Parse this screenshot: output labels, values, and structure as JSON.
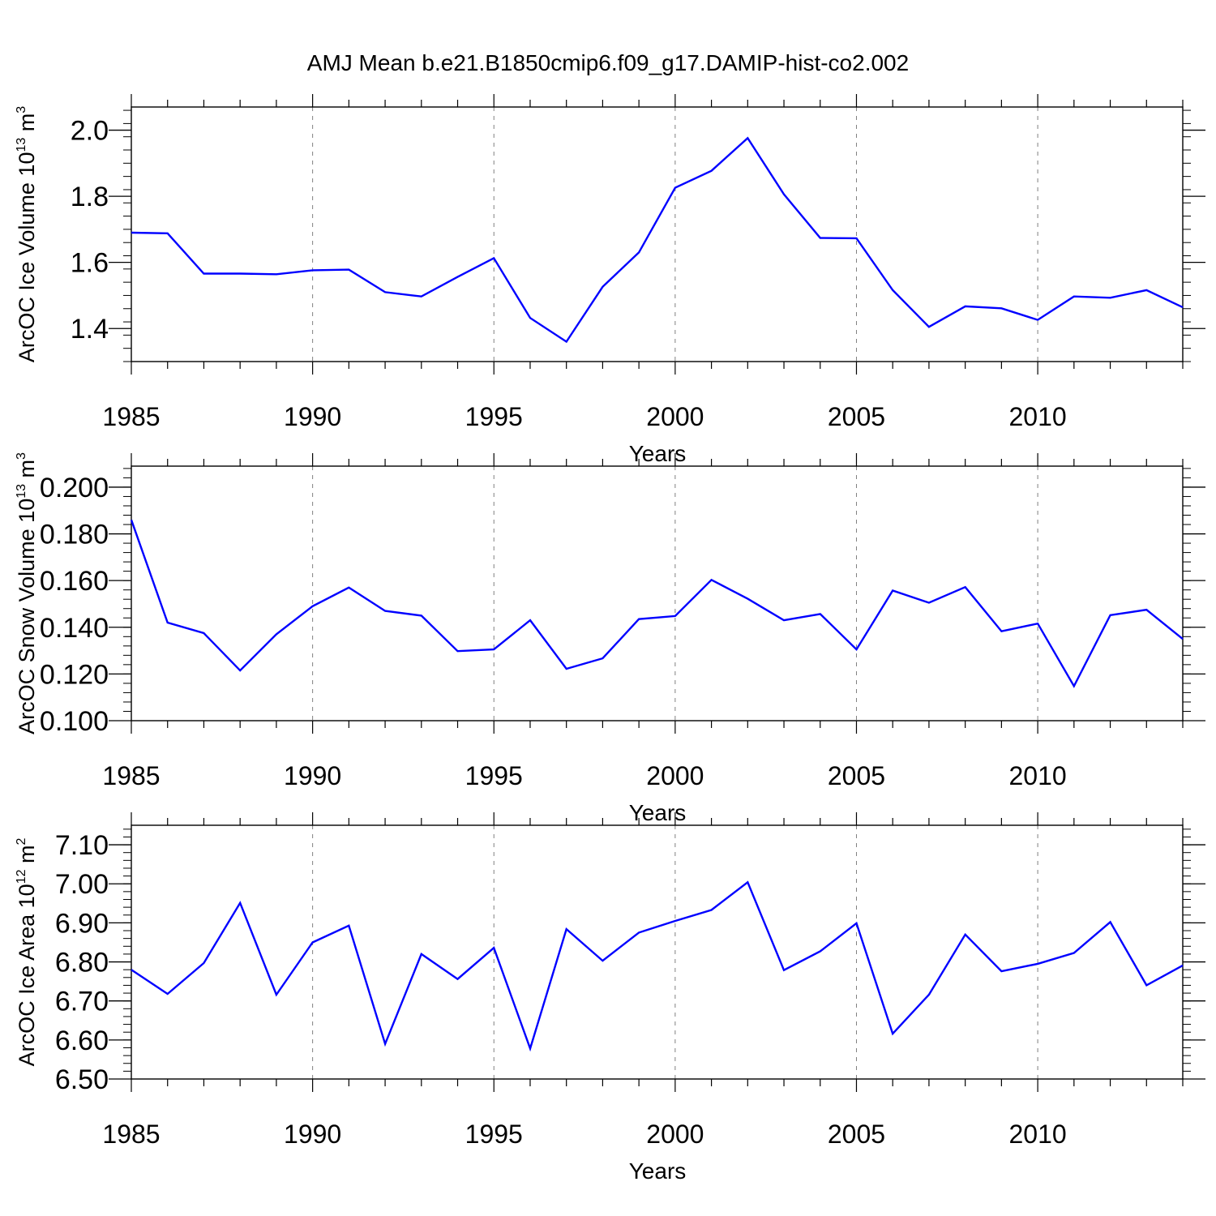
{
  "title": "AMJ Mean b.e21.B1850cmip6.f09_g17.DAMIP-hist-co2.002",
  "line_color": "#0000ff",
  "chart_data": [
    {
      "type": "line",
      "title": "AMJ Mean b.e21.B1850cmip6.f09_g17.DAMIP-hist-co2.002",
      "xlabel": "Years",
      "ylabel": "ArcOC Ice Volume 10",
      "ylabel_exp": "13",
      "ylabel_unit": " m",
      "ylabel_unit_exp": "3",
      "xlim": [
        1985,
        2014
      ],
      "ylim": [
        1.3,
        2.07
      ],
      "xticks": [
        1985,
        1990,
        1995,
        2000,
        2005,
        2010
      ],
      "xtick_labels": [
        "1985",
        "1990",
        "1995",
        "2000",
        "2005",
        "2010"
      ],
      "yticks": [
        1.4,
        1.6,
        1.8,
        2.0
      ],
      "ytick_labels": [
        "1.4",
        "1.6",
        "1.8",
        "2.0"
      ],
      "y_minor_step": 0.04,
      "grid": "vertical dashed at major x ticks",
      "x": [
        1985,
        1986,
        1987,
        1988,
        1989,
        1990,
        1991,
        1992,
        1993,
        1994,
        1995,
        1996,
        1997,
        1998,
        1999,
        2000,
        2001,
        2002,
        2003,
        2004,
        2005,
        2006,
        2007,
        2008,
        2009,
        2010,
        2011,
        2012,
        2013,
        2014
      ],
      "values": [
        1.69,
        1.688,
        1.566,
        1.566,
        1.564,
        1.576,
        1.578,
        1.51,
        1.497,
        1.556,
        1.613,
        1.432,
        1.36,
        1.526,
        1.63,
        1.826,
        1.877,
        1.976,
        1.806,
        1.674,
        1.673,
        1.516,
        1.405,
        1.467,
        1.461,
        1.426,
        1.497,
        1.493,
        1.516,
        1.464
      ]
    },
    {
      "type": "line",
      "xlabel": "Years",
      "ylabel": "ArcOC Snow Volume 10",
      "ylabel_exp": "13",
      "ylabel_unit": " m",
      "ylabel_unit_exp": "3",
      "xlim": [
        1985,
        2014
      ],
      "ylim": [
        0.1,
        0.209
      ],
      "xticks": [
        1985,
        1990,
        1995,
        2000,
        2005,
        2010
      ],
      "xtick_labels": [
        "1985",
        "1990",
        "1995",
        "2000",
        "2005",
        "2010"
      ],
      "yticks": [
        0.1,
        0.12,
        0.14,
        0.16,
        0.18,
        0.2
      ],
      "ytick_labels": [
        "0.100",
        "0.120",
        "0.140",
        "0.160",
        "0.180",
        "0.200"
      ],
      "y_minor_step": 0.004,
      "grid": "vertical dashed at major x ticks",
      "x": [
        1985,
        1986,
        1987,
        1988,
        1989,
        1990,
        1991,
        1992,
        1993,
        1994,
        1995,
        1996,
        1997,
        1998,
        1999,
        2000,
        2001,
        2002,
        2003,
        2004,
        2005,
        2006,
        2007,
        2008,
        2009,
        2010,
        2011,
        2012,
        2013,
        2014
      ],
      "values": [
        0.186,
        0.142,
        0.1375,
        0.1215,
        0.137,
        0.149,
        0.157,
        0.147,
        0.145,
        0.1298,
        0.1305,
        0.143,
        0.1222,
        0.1267,
        0.1435,
        0.1448,
        0.1603,
        0.1522,
        0.143,
        0.1457,
        0.1305,
        0.1557,
        0.1505,
        0.1572,
        0.1383,
        0.1416,
        0.1148,
        0.1452,
        0.1475,
        0.135
      ]
    },
    {
      "type": "line",
      "xlabel": "Years",
      "ylabel": "ArcOC Ice Area 10",
      "ylabel_exp": "12",
      "ylabel_unit": " m",
      "ylabel_unit_exp": "2",
      "xlim": [
        1985,
        2014
      ],
      "ylim": [
        6.5,
        7.15
      ],
      "xticks": [
        1985,
        1990,
        1995,
        2000,
        2005,
        2010
      ],
      "xtick_labels": [
        "1985",
        "1990",
        "1995",
        "2000",
        "2005",
        "2010"
      ],
      "yticks": [
        6.5,
        6.6,
        6.7,
        6.8,
        6.9,
        7.0,
        7.1
      ],
      "ytick_labels": [
        "6.50",
        "6.60",
        "6.70",
        "6.80",
        "6.90",
        "7.00",
        "7.10"
      ],
      "y_minor_step": 0.02,
      "grid": "vertical dashed at major x ticks",
      "x": [
        1985,
        1986,
        1987,
        1988,
        1989,
        1990,
        1991,
        1992,
        1993,
        1994,
        1995,
        1996,
        1997,
        1998,
        1999,
        2000,
        2001,
        2002,
        2003,
        2004,
        2005,
        2006,
        2007,
        2008,
        2009,
        2010,
        2011,
        2012,
        2013,
        2014
      ],
      "values": [
        6.78,
        6.718,
        6.797,
        6.951,
        6.716,
        6.85,
        6.893,
        6.59,
        6.82,
        6.756,
        6.836,
        6.578,
        6.884,
        6.803,
        6.875,
        6.905,
        6.933,
        7.004,
        6.779,
        6.827,
        6.899,
        6.616,
        6.716,
        6.87,
        6.776,
        6.795,
        6.823,
        6.902,
        6.74,
        6.791
      ]
    }
  ]
}
